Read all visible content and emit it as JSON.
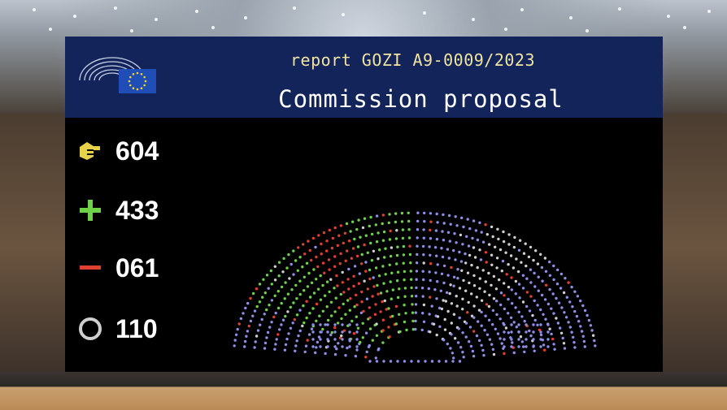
{
  "header": {
    "report": "report GOZI A9-0009/2023",
    "title": "Commission proposal"
  },
  "results": {
    "present": "604",
    "for": "433",
    "against": "061",
    "abstain": "110"
  },
  "icons": {
    "present": "hand-raised-icon",
    "for": "plus-icon",
    "against": "minus-icon",
    "abstain": "circle-icon"
  },
  "colors": {
    "header_bg": "#12245a",
    "report_text": "#f1e3a0",
    "present": "#e8d24a",
    "for": "#6fd14a",
    "against": "#e04030",
    "abstain": "#cfcfcf",
    "absent": "#8e8ee6"
  }
}
